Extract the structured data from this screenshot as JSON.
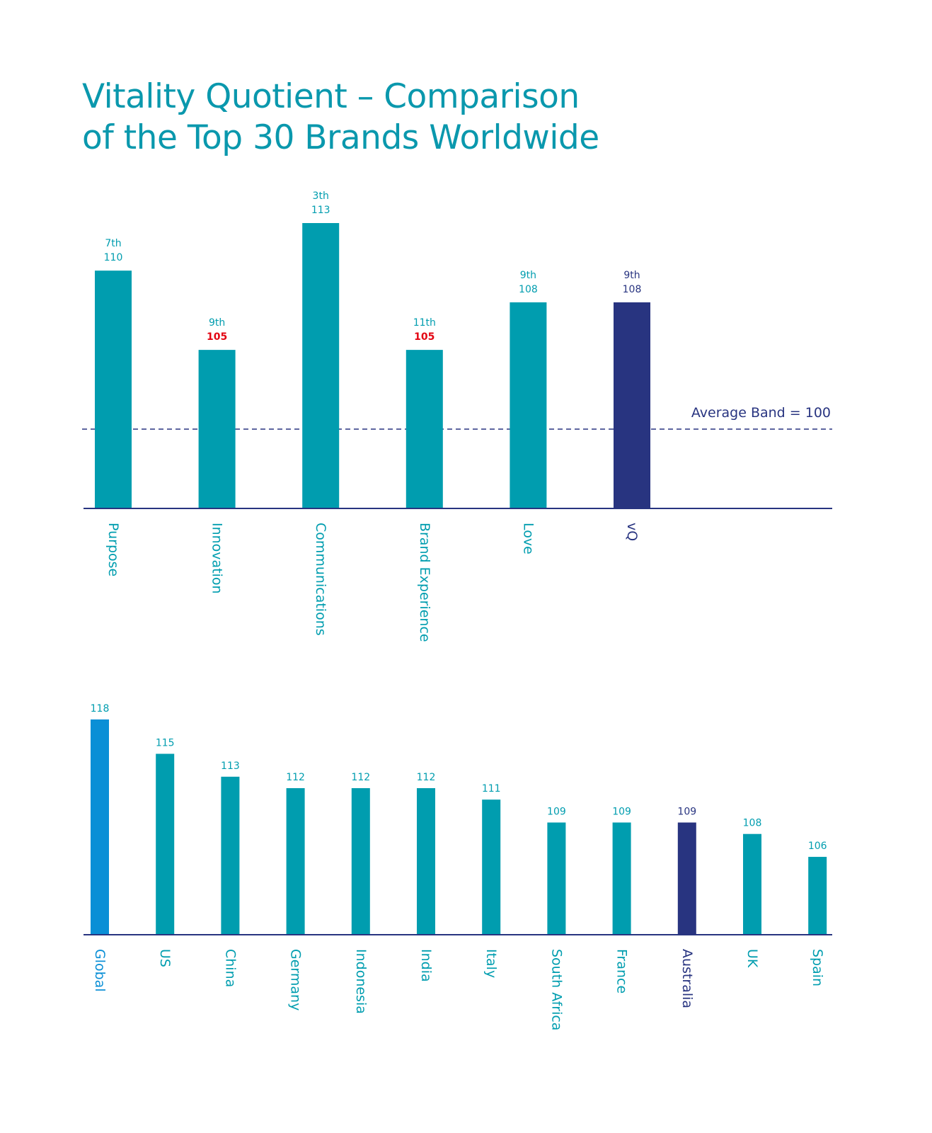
{
  "title": {
    "line1": "Vitality Quotient – Comparison",
    "line2": "of the Top 30 Brands Worldwide"
  },
  "colors": {
    "teal": "#009daf",
    "navy": "#283480",
    "blue": "#0a8fd6",
    "red": "#e30613",
    "title": "#0a98ad"
  },
  "chart_data": [
    {
      "type": "bar",
      "title": "",
      "categories": [
        "Purpose",
        "Innovation",
        "Communications",
        "Brand Experience",
        "Love",
        "vQ"
      ],
      "values": [
        110,
        105,
        113,
        105,
        108,
        108
      ],
      "ranks": [
        "7th",
        "9th",
        "3th",
        "11th",
        "9th",
        "9th"
      ],
      "highlight": [
        false,
        true,
        false,
        true,
        false,
        false
      ],
      "emphasis": [
        false,
        false,
        false,
        false,
        false,
        true
      ],
      "reference_line": {
        "value": 100,
        "label": "Average Band = 100",
        "style": "dashed"
      },
      "ylim": [
        95,
        113
      ],
      "xlabel": "",
      "ylabel": ""
    },
    {
      "type": "bar",
      "title": "",
      "categories": [
        "Global",
        "US",
        "China",
        "Germany",
        "Indonesia",
        "India",
        "Italy",
        "South Africa",
        "France",
        "Australia",
        "UK",
        "Spain"
      ],
      "values": [
        118,
        115,
        113,
        112,
        112,
        112,
        111,
        109,
        109,
        109,
        108,
        106
      ],
      "bar_styles": [
        "global",
        "teal",
        "teal",
        "teal",
        "teal",
        "teal",
        "teal",
        "teal",
        "teal",
        "focus",
        "teal",
        "teal"
      ],
      "ylim": [
        99.2,
        118
      ],
      "xlabel": "",
      "ylabel": ""
    }
  ]
}
